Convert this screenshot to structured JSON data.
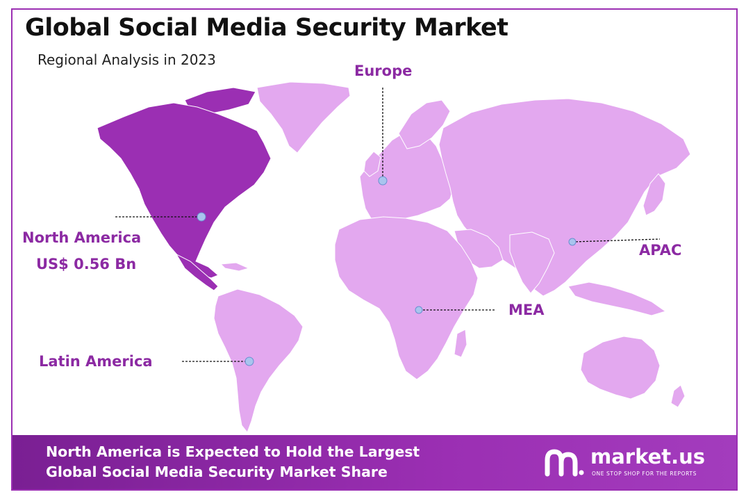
{
  "header": {
    "title": "Global Social Media Security Market",
    "subtitle": "Regional Analysis in 2023"
  },
  "regions": {
    "north_america": {
      "name": "North America",
      "value": "US$ 0.56 Bn"
    },
    "europe": {
      "name": "Europe"
    },
    "apac": {
      "name": "APAC"
    },
    "mea": {
      "name": "MEA"
    },
    "latin_america": {
      "name": "Latin America"
    }
  },
  "colors": {
    "highlight": "#9b2fb3",
    "land": "#e3a8ef",
    "label": "#8c2aa3",
    "marker": "#a9c4ee"
  },
  "footer": {
    "line1": "North America is Expected to Hold the Largest",
    "line2": "Global Social Media Security Market Share"
  },
  "brand": {
    "name": "market.us",
    "tagline": "ONE STOP SHOP FOR THE REPORTS",
    "icon": "market-us-logo-icon"
  }
}
